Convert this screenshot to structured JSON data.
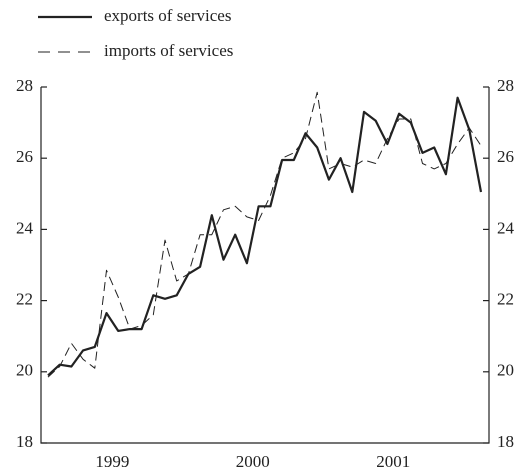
{
  "chart_data": {
    "type": "line",
    "categories": [
      null,
      null,
      null,
      null,
      null,
      "1999",
      null,
      null,
      null,
      null,
      null,
      null,
      null,
      null,
      null,
      null,
      null,
      "2000",
      null,
      null,
      null,
      null,
      null,
      null,
      null,
      null,
      null,
      null,
      null,
      "2001",
      null,
      null,
      null,
      null,
      null,
      null,
      null,
      null
    ],
    "series": [
      {
        "name": "exports of services",
        "color": "#222222",
        "dash": "solid",
        "values": [
          19.9,
          20.2,
          20.15,
          20.6,
          20.7,
          21.65,
          21.15,
          21.2,
          21.2,
          22.15,
          22.05,
          22.15,
          22.75,
          22.95,
          24.4,
          23.15,
          23.85,
          23.05,
          24.65,
          24.65,
          25.95,
          25.95,
          26.7,
          26.3,
          25.4,
          26.0,
          25.05,
          27.3,
          27.05,
          26.4,
          27.25,
          27.0,
          26.15,
          26.3,
          25.55,
          27.7,
          26.8,
          25.05
        ]
      },
      {
        "name": "imports of services",
        "color": "#222222",
        "dash": "dashed",
        "values": [
          19.85,
          20.15,
          20.8,
          20.35,
          20.1,
          22.85,
          22.1,
          21.2,
          21.3,
          21.6,
          23.7,
          22.55,
          22.75,
          23.85,
          23.85,
          24.55,
          24.65,
          24.35,
          24.25,
          24.95,
          26.0,
          26.15,
          26.55,
          27.85,
          25.7,
          25.85,
          25.75,
          25.95,
          25.85,
          26.55,
          27.1,
          27.1,
          25.85,
          25.7,
          25.85,
          26.4,
          26.85,
          26.35
        ]
      }
    ],
    "ylim": [
      18,
      28
    ],
    "yticks": [
      18,
      20,
      22,
      24,
      26,
      28
    ],
    "y2lim": [
      18,
      28
    ],
    "y2ticks": [
      18,
      20,
      22,
      24,
      26,
      28
    ],
    "legend": "top-left"
  }
}
